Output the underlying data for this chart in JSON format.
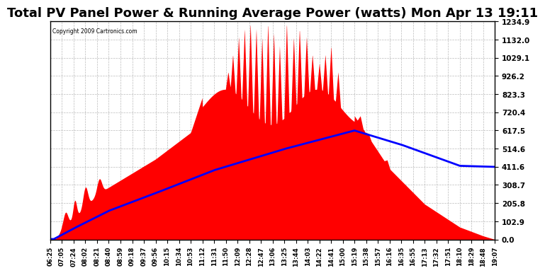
{
  "title": "Total PV Panel Power & Running Average Power (watts) Mon Apr 13 19:11",
  "copyright": "Copyright 2009 Cartronics.com",
  "yticks": [
    0.0,
    102.9,
    205.8,
    308.7,
    411.6,
    514.6,
    617.5,
    720.4,
    823.3,
    926.2,
    1029.1,
    1132.0,
    1234.9
  ],
  "xtick_labels": [
    "06:25",
    "07:05",
    "07:24",
    "08:02",
    "08:21",
    "08:40",
    "08:59",
    "09:18",
    "09:37",
    "09:56",
    "10:15",
    "10:34",
    "10:53",
    "11:12",
    "11:31",
    "11:50",
    "12:09",
    "12:28",
    "12:47",
    "13:06",
    "13:25",
    "13:44",
    "14:03",
    "14:22",
    "14:41",
    "15:00",
    "15:19",
    "15:38",
    "15:57",
    "16:16",
    "16:35",
    "16:55",
    "17:13",
    "17:32",
    "17:51",
    "18:10",
    "18:29",
    "18:48",
    "19:07"
  ],
  "bg_color": "#ffffff",
  "plot_bg_color": "#ffffff",
  "grid_color": "#aaaaaa",
  "fill_color": "#ff0000",
  "line_color": "#0000ff",
  "title_fontsize": 13,
  "ymax": 1234.9,
  "ymin": 0.0
}
